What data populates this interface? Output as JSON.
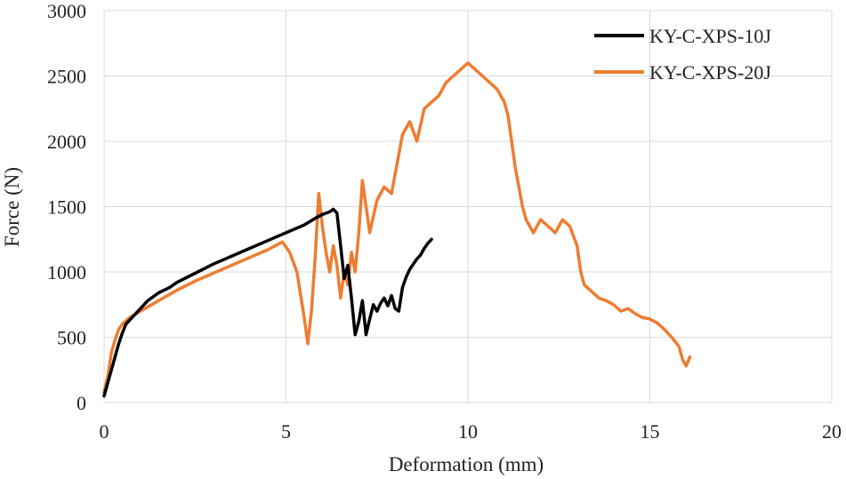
{
  "chart_data": {
    "type": "line",
    "title": "",
    "xlabel": "Deformation (mm)",
    "ylabel": "Force (N)",
    "xlim": [
      0,
      20
    ],
    "ylim": [
      0,
      3000
    ],
    "xticks": [
      0,
      5,
      10,
      15,
      20
    ],
    "yticks": [
      0,
      500,
      1000,
      1500,
      2000,
      2500,
      3000
    ],
    "grid": true,
    "legend_position": "top-right",
    "series": [
      {
        "name": "KY-C-XPS-10J",
        "color": "#000000",
        "x": [
          0,
          0.1,
          0.2,
          0.3,
          0.4,
          0.5,
          0.6,
          0.8,
          1.0,
          1.2,
          1.5,
          1.8,
          2.0,
          2.5,
          3.0,
          3.5,
          4.0,
          4.5,
          5.0,
          5.5,
          5.8,
          6.0,
          6.2,
          6.3,
          6.4,
          6.5,
          6.6,
          6.7,
          6.8,
          6.9,
          7.0,
          7.1,
          7.2,
          7.3,
          7.4,
          7.5,
          7.6,
          7.7,
          7.8,
          7.9,
          8.0,
          8.1,
          8.2,
          8.3,
          8.4,
          8.5,
          8.6,
          8.7,
          8.8,
          8.9,
          9.0
        ],
        "y": [
          50,
          150,
          250,
          350,
          450,
          530,
          600,
          660,
          720,
          780,
          840,
          880,
          920,
          990,
          1060,
          1120,
          1180,
          1240,
          1300,
          1360,
          1410,
          1440,
          1460,
          1480,
          1450,
          1200,
          950,
          1050,
          800,
          520,
          620,
          780,
          520,
          640,
          750,
          700,
          760,
          800,
          740,
          820,
          720,
          700,
          880,
          960,
          1020,
          1060,
          1100,
          1130,
          1180,
          1220,
          1250
        ]
      },
      {
        "name": "KY-C-XPS-20J",
        "color": "#ed7d31",
        "x": [
          0,
          0.1,
          0.2,
          0.3,
          0.4,
          0.5,
          0.7,
          1.0,
          1.5,
          2.0,
          2.5,
          3.0,
          3.5,
          4.0,
          4.5,
          4.9,
          5.1,
          5.3,
          5.5,
          5.6,
          5.7,
          5.8,
          5.9,
          6.0,
          6.1,
          6.2,
          6.3,
          6.4,
          6.5,
          6.6,
          6.7,
          6.8,
          6.9,
          7.0,
          7.1,
          7.2,
          7.3,
          7.5,
          7.7,
          7.9,
          8.0,
          8.2,
          8.4,
          8.6,
          8.8,
          9.0,
          9.2,
          9.4,
          9.6,
          9.8,
          10.0,
          10.2,
          10.4,
          10.6,
          10.8,
          11.0,
          11.1,
          11.2,
          11.3,
          11.4,
          11.5,
          11.6,
          11.7,
          11.8,
          12.0,
          12.2,
          12.4,
          12.6,
          12.8,
          13.0,
          13.1,
          13.2,
          13.4,
          13.6,
          13.8,
          14.0,
          14.2,
          14.4,
          14.6,
          14.8,
          15.0,
          15.2,
          15.4,
          15.6,
          15.8,
          15.9,
          16.0,
          16.1
        ],
        "y": [
          80,
          200,
          380,
          480,
          560,
          600,
          650,
          700,
          780,
          860,
          930,
          990,
          1050,
          1110,
          1170,
          1230,
          1150,
          1000,
          650,
          450,
          700,
          1100,
          1600,
          1350,
          1150,
          1000,
          1200,
          1050,
          800,
          1000,
          900,
          1150,
          1000,
          1300,
          1700,
          1500,
          1300,
          1550,
          1650,
          1600,
          1750,
          2050,
          2150,
          2000,
          2250,
          2300,
          2350,
          2450,
          2500,
          2550,
          2600,
          2550,
          2500,
          2450,
          2400,
          2300,
          2200,
          2000,
          1800,
          1650,
          1500,
          1400,
          1350,
          1300,
          1400,
          1350,
          1300,
          1400,
          1350,
          1200,
          1000,
          900,
          850,
          800,
          780,
          750,
          700,
          720,
          680,
          650,
          640,
          610,
          560,
          500,
          430,
          330,
          280,
          350
        ]
      }
    ]
  }
}
